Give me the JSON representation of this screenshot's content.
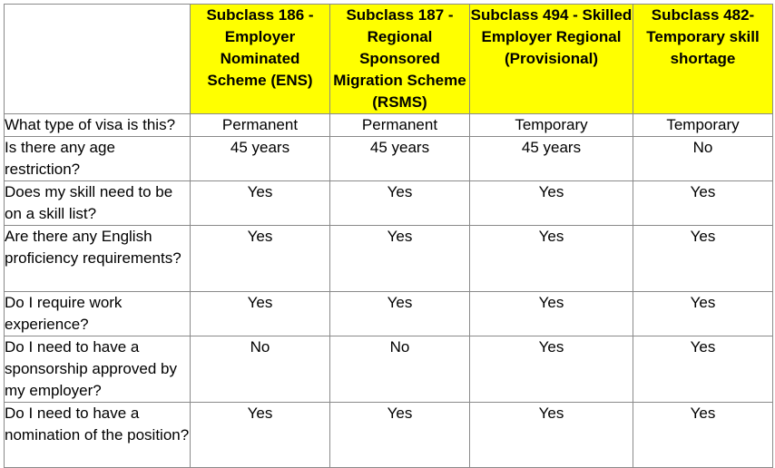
{
  "table": {
    "headers": [
      "Subclass 186 - Employer Nominated Scheme (ENS)",
      "Subclass 187 - Regional Sponsored Migration Scheme (RSMS)",
      "Subclass 494 - Skilled Employer Regional (Provisional)",
      "Subclass 482- Temporary skill shortage"
    ],
    "rows": [
      {
        "question": "What type of visa is this?",
        "answers": [
          "Permanent",
          "Permanent",
          "Temporary",
          "Temporary"
        ]
      },
      {
        "question": "Is there any age restriction?",
        "answers": [
          "45 years",
          "45 years",
          "45 years",
          "No"
        ]
      },
      {
        "question": "Does my skill need to be on a skill list?",
        "answers": [
          "Yes",
          "Yes",
          "Yes",
          "Yes"
        ]
      },
      {
        "question": "Are there any English proficiency requirements?",
        "answers": [
          "Yes",
          "Yes",
          "Yes",
          "Yes"
        ]
      },
      {
        "question": "Do I require work experience?",
        "answers": [
          "Yes",
          "Yes",
          "Yes",
          "Yes"
        ]
      },
      {
        "question": "Do I need to have a sponsorship approved by my employer?",
        "answers": [
          "No",
          "No",
          "Yes",
          "Yes"
        ]
      },
      {
        "question": "Do I need to have a nomination of the position?",
        "answers": [
          "Yes",
          "Yes",
          "Yes",
          "Yes"
        ]
      }
    ]
  },
  "colors": {
    "header_bg": "#ffff00",
    "border": "#8a8a8a"
  }
}
